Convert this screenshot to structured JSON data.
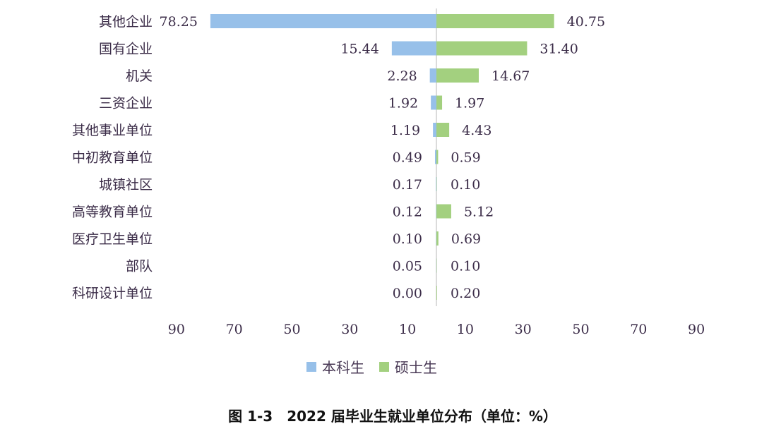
{
  "chart_data": {
    "type": "bar",
    "orientation": "horizontal-diverging",
    "title": "图 1-3　2022 届毕业生就业单位分布（单位：%）",
    "categories": [
      "其他企业",
      "国有企业",
      "机关",
      "三资企业",
      "其他事业单位",
      "中初教育单位",
      "城镇社区",
      "高等教育单位",
      "医疗卫生单位",
      "部队",
      "科研设计单位"
    ],
    "series": [
      {
        "name": "本科生",
        "color": "#97c0e9",
        "side": "left",
        "values": [
          78.25,
          15.44,
          2.28,
          1.92,
          1.19,
          0.49,
          0.17,
          0.12,
          0.1,
          0.05,
          0.0
        ],
        "labels": [
          "78.25",
          "15.44",
          "2.28",
          "1.92",
          "1.19",
          "0.49",
          "0.17",
          "0.12",
          "0.10",
          "0.05",
          "0.00"
        ]
      },
      {
        "name": "硕士生",
        "color": "#a3d07f",
        "side": "right",
        "values": [
          40.75,
          31.4,
          14.67,
          1.97,
          4.43,
          0.59,
          0.1,
          5.12,
          0.69,
          0.1,
          0.2
        ],
        "labels": [
          "40.75",
          "31.40",
          "14.67",
          "1.97",
          "4.43",
          "0.59",
          "0.10",
          "5.12",
          "0.69",
          "0.10",
          "0.20"
        ]
      }
    ],
    "xlim": [
      -90,
      90
    ],
    "xticks": [
      -90,
      -70,
      -50,
      -30,
      -10,
      10,
      30,
      50,
      70,
      90
    ],
    "xtick_labels": [
      "90",
      "70",
      "50",
      "30",
      "10",
      "10",
      "30",
      "50",
      "70",
      "90"
    ],
    "grid": false,
    "legend_position": "bottom"
  }
}
